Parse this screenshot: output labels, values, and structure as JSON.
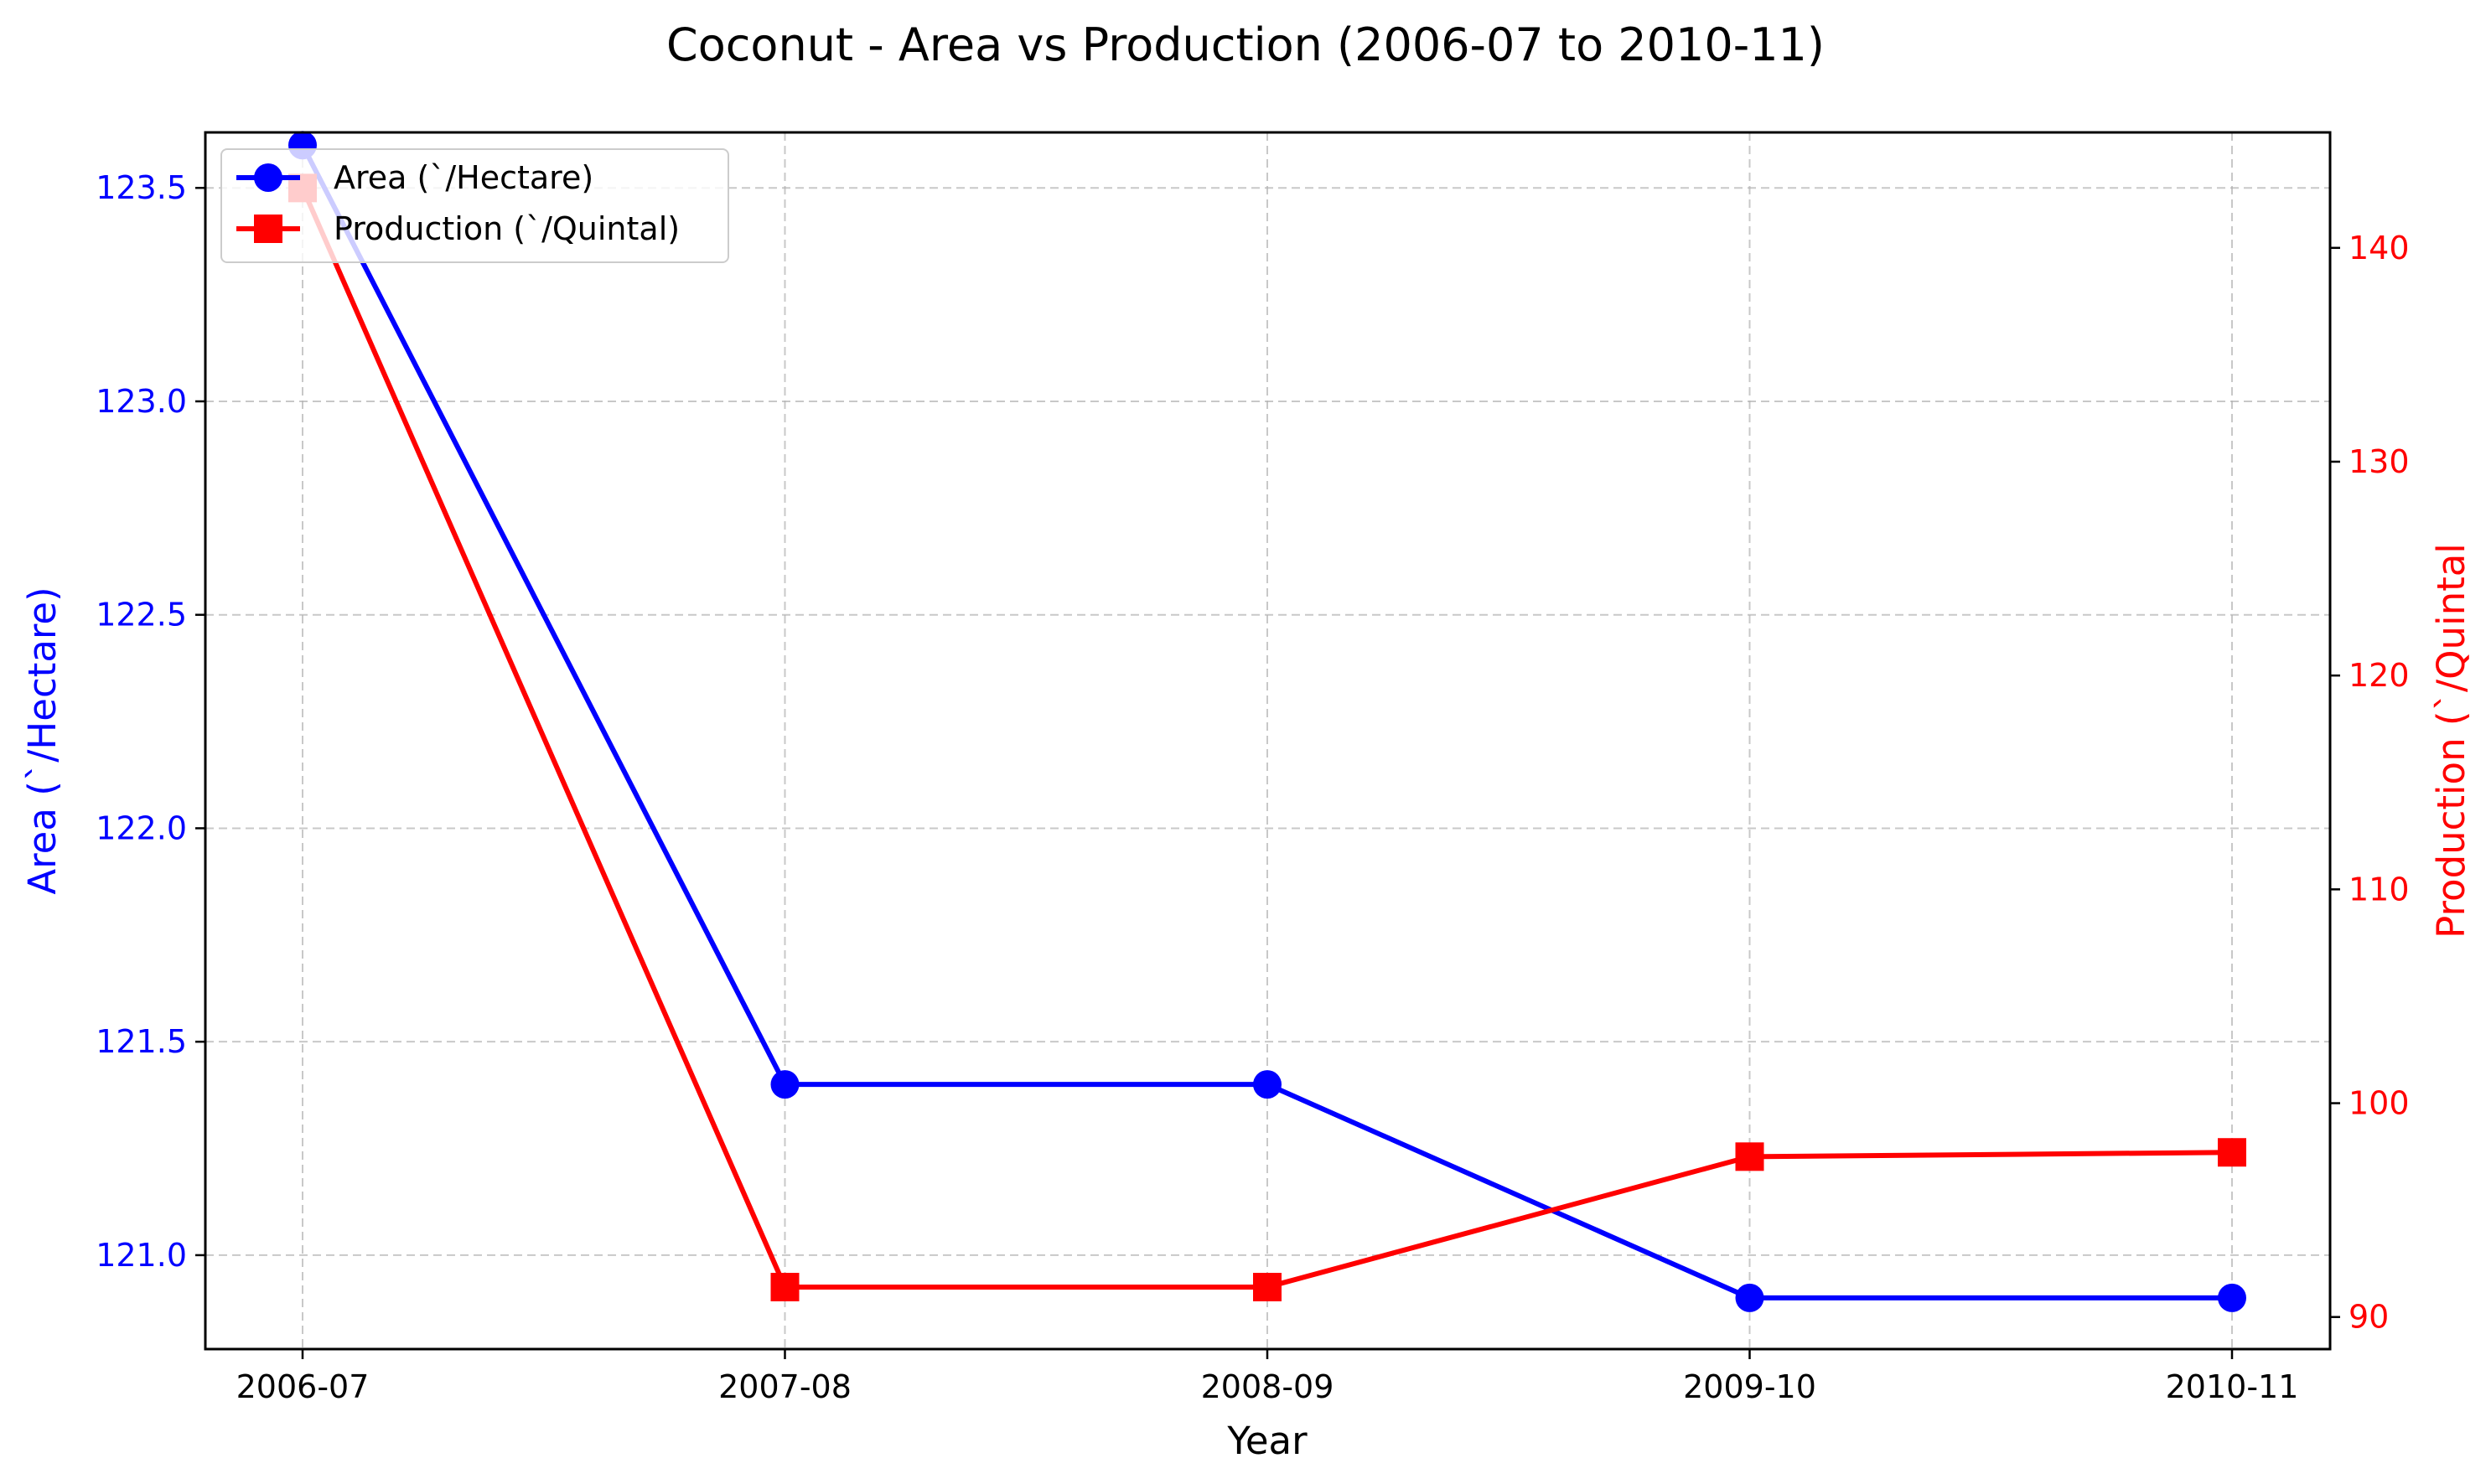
{
  "chart_data": {
    "type": "line",
    "title": "Coconut - Area vs Production (2006-07 to 2010-11)",
    "xlabel": "Year",
    "categories": [
      "2006-07",
      "2007-08",
      "2008-09",
      "2009-10",
      "2010-11"
    ],
    "grid": true,
    "legend_position": "top-left",
    "axes": {
      "left": {
        "label": "Area (`/Hectare)",
        "color": "#0000ff",
        "range": [
          120.78,
          123.63
        ],
        "ticks": [
          121.0,
          121.5,
          122.0,
          122.5,
          123.0,
          123.5
        ],
        "tick_labels": [
          "121.0",
          "121.5",
          "122.0",
          "122.5",
          "123.0",
          "123.5"
        ]
      },
      "right": {
        "label": "Production (`/Quintal",
        "color": "#ff0000",
        "range": [
          88.5,
          145.4
        ],
        "ticks": [
          90,
          100,
          110,
          120,
          130,
          140
        ],
        "tick_labels": [
          "90",
          "100",
          "110",
          "120",
          "130",
          "140"
        ]
      }
    },
    "series": [
      {
        "name": "Area (`/Hectare)",
        "axis": "left",
        "color": "#0000ff",
        "marker": "circle",
        "values": [
          123.6,
          121.4,
          121.4,
          120.9,
          120.9
        ]
      },
      {
        "name": "Production (`/Quintal)",
        "axis": "right",
        "color": "#ff0000",
        "marker": "square",
        "values": [
          142.8,
          91.4,
          91.4,
          97.5,
          97.7
        ]
      }
    ]
  }
}
